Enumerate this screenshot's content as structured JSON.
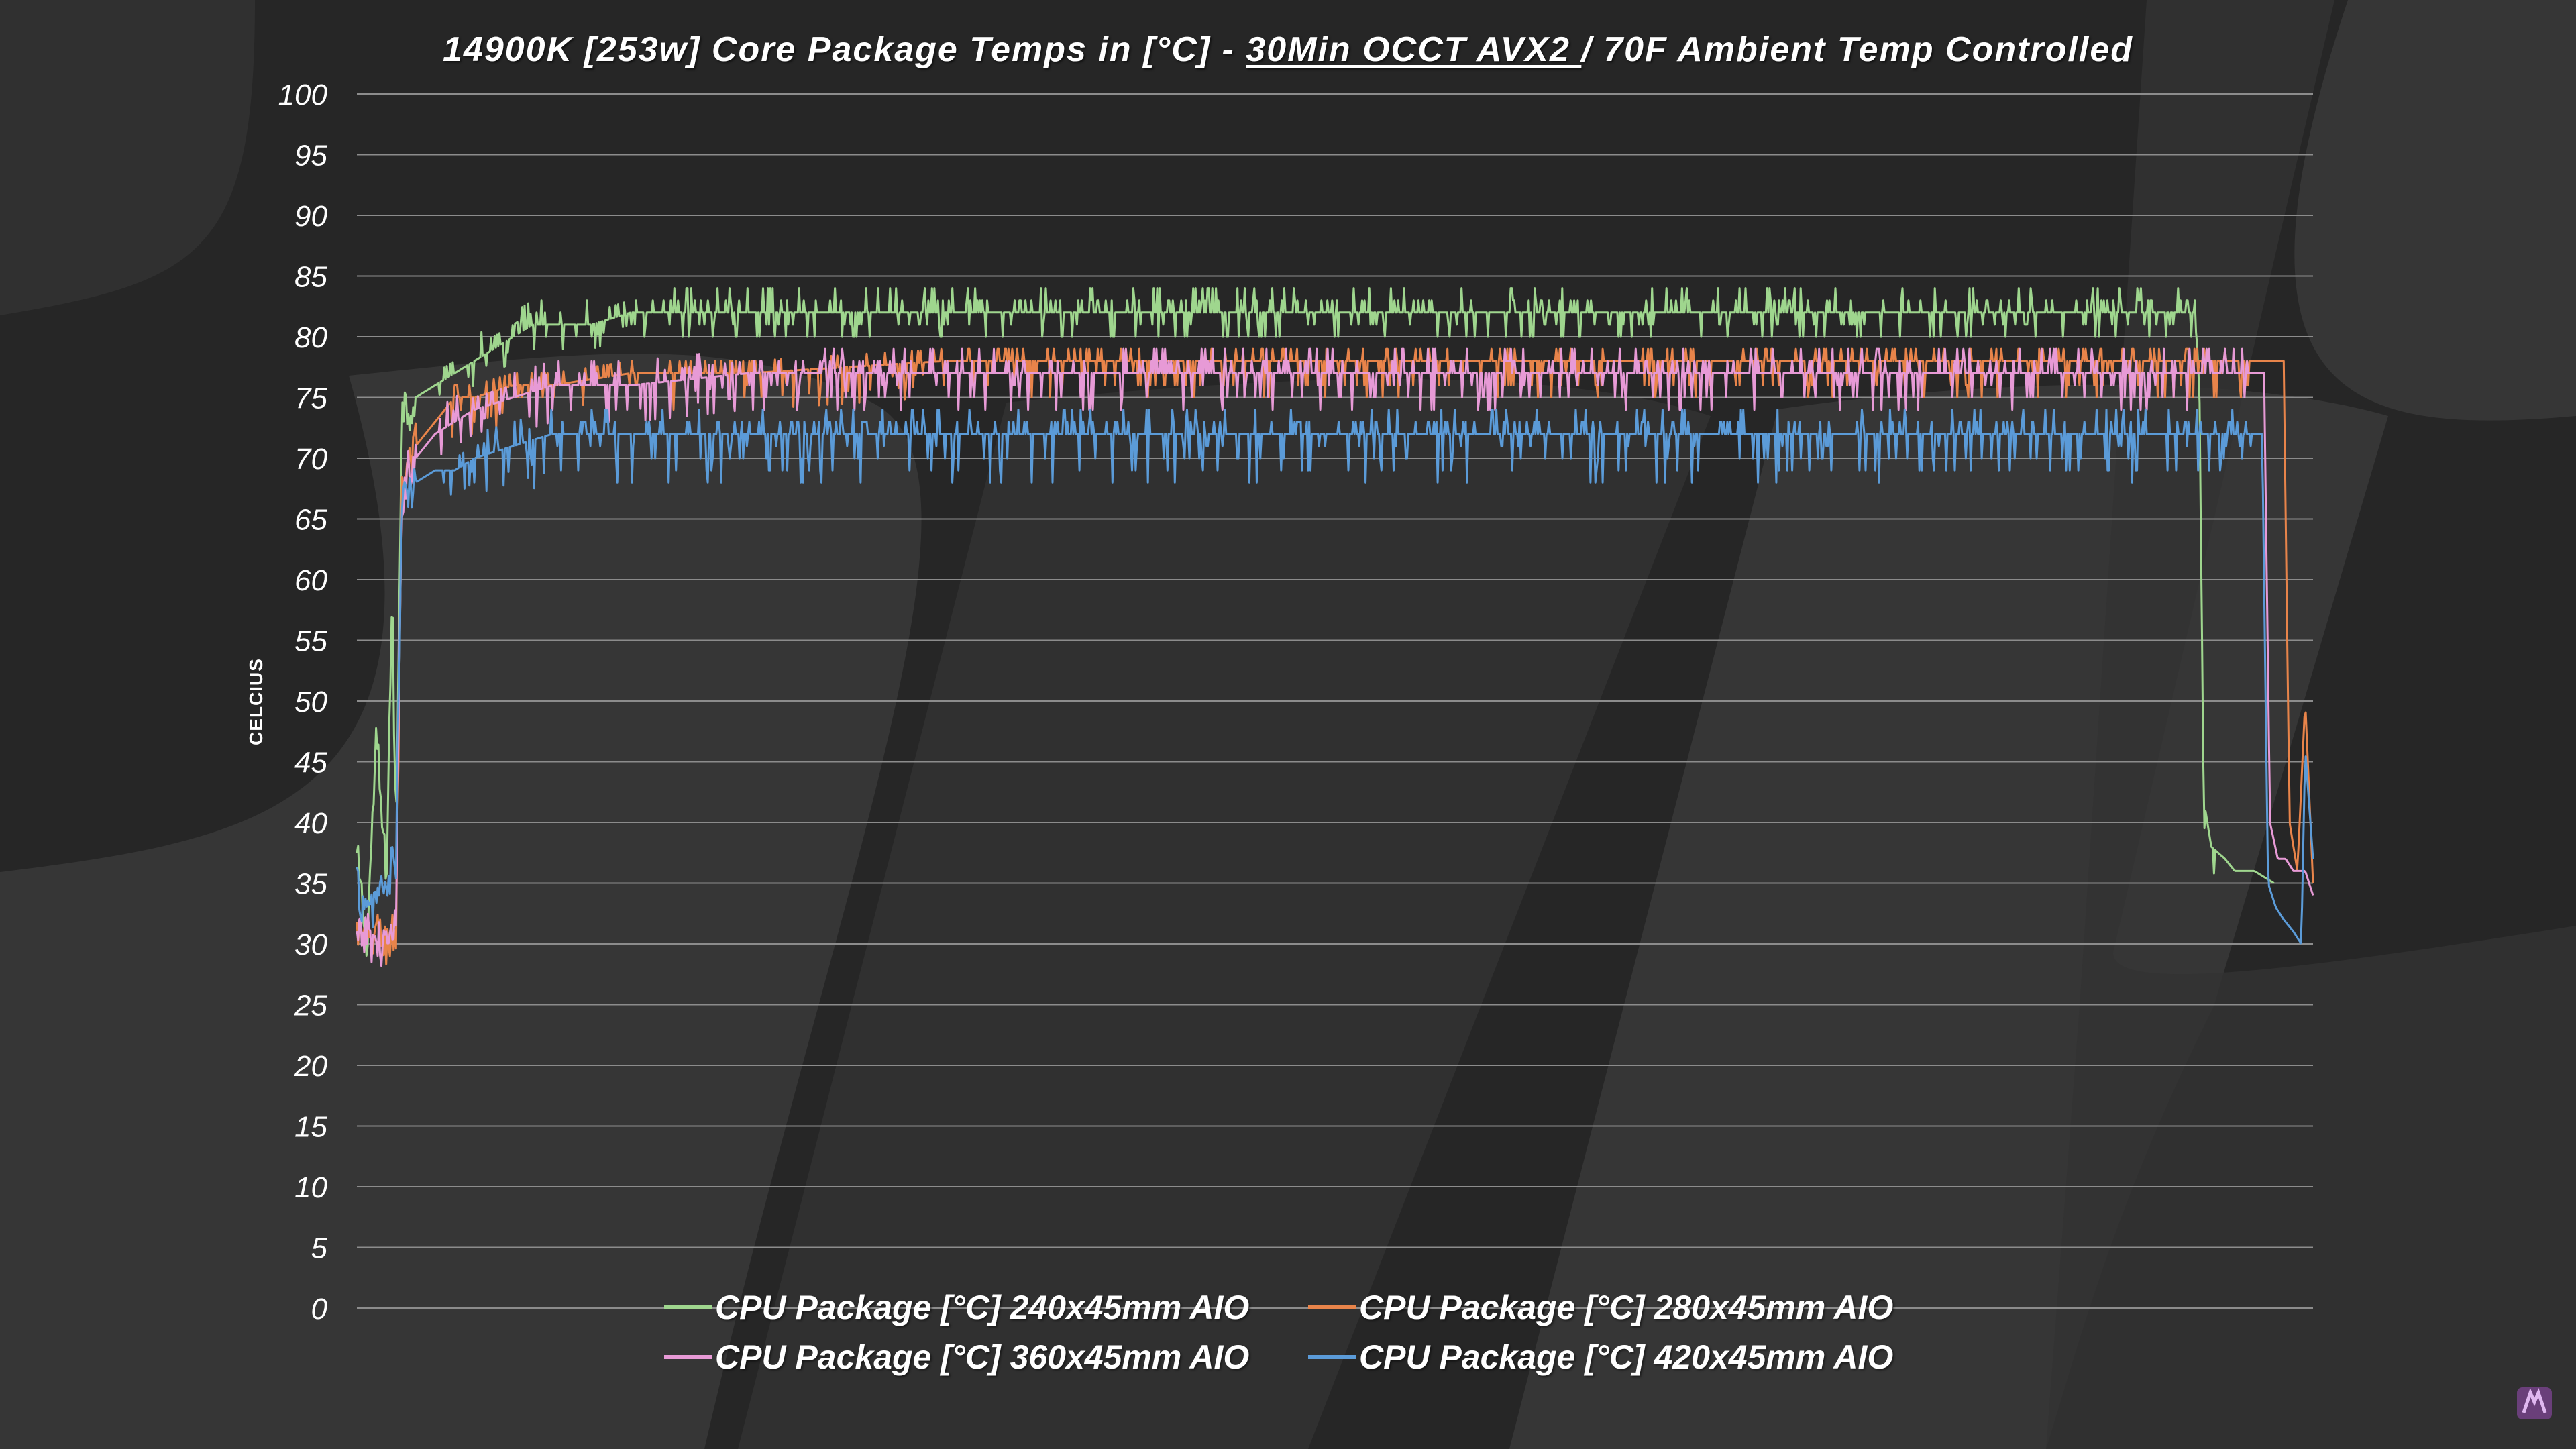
{
  "chart_data": {
    "type": "line",
    "title_parts": {
      "before": "14900K [253w]  Core Package Temps in [°C] - ",
      "underlined": "30Min OCCT AVX2 ",
      "after": "/ 70F Ambient Temp Controlled"
    },
    "ylabel": "CELCIUS",
    "xlabel": "",
    "ylim": [
      0,
      100
    ],
    "yticks": [
      0,
      5,
      10,
      15,
      20,
      25,
      30,
      35,
      40,
      45,
      50,
      55,
      60,
      65,
      70,
      75,
      80,
      85,
      90,
      95,
      100
    ],
    "grid": true,
    "legend_position": "bottom",
    "x_unit": "sample index (0-100 normalized run progress)",
    "series": [
      {
        "name": "CPU Package [°C] 240x45mm AIO",
        "color": "#9fd68e",
        "x": [
          0,
          0.5,
          1,
          1.5,
          1.8,
          2,
          2.3,
          2.6,
          3,
          4,
          5,
          6,
          7,
          8,
          9,
          10,
          12,
          14,
          20,
          30,
          40,
          50,
          60,
          70,
          80,
          90,
          94,
          94.2,
          94.4,
          94.8,
          95.5,
          96,
          97,
          98
        ],
        "values": [
          37,
          30,
          47,
          35,
          59,
          38,
          75,
          74,
          75,
          76,
          77,
          78,
          79,
          80,
          81,
          81,
          81,
          82,
          82,
          82,
          82,
          82,
          82,
          82,
          82,
          82,
          82,
          75,
          42,
          38,
          37,
          36,
          36,
          35
        ],
        "noise_hi": 2,
        "noise_lo": 1
      },
      {
        "name": "CPU Package [°C] 280x45mm AIO",
        "color": "#e8844a",
        "x": [
          0,
          0.5,
          1,
          1.5,
          2,
          2.3,
          2.6,
          3,
          4,
          5,
          6,
          8,
          10,
          14,
          20,
          30,
          40,
          50,
          60,
          70,
          80,
          90,
          95,
          98,
          98.5,
          98.8,
          99.2,
          99.6,
          100
        ],
        "values": [
          31,
          30,
          31,
          30,
          31,
          68,
          69,
          71,
          73,
          75,
          75,
          76,
          76,
          77,
          77,
          78,
          78,
          78,
          78,
          78,
          78,
          78,
          78,
          78,
          78,
          40,
          36,
          50,
          35
        ],
        "noise_hi": 1,
        "noise_lo": 2
      },
      {
        "name": "CPU Package [°C] 360x45mm AIO",
        "color": "#e79ad6",
        "x": [
          0,
          0.5,
          1,
          1.5,
          2,
          2.3,
          2.6,
          3,
          4,
          5,
          6,
          8,
          10,
          14,
          20,
          30,
          40,
          50,
          60,
          70,
          80,
          90,
          95,
          97.5,
          97.8,
          98.2,
          98.6,
          99,
          99.6,
          100
        ],
        "values": [
          30,
          31,
          30,
          30,
          31,
          67,
          69,
          70,
          72,
          73,
          74,
          75,
          76,
          76,
          77,
          77,
          77,
          77,
          77,
          77,
          77,
          77,
          77,
          77,
          40,
          37,
          37,
          36,
          36,
          34
        ],
        "noise_hi": 2,
        "noise_lo": 2
      },
      {
        "name": "CPU Package [°C] 420x45mm AIO",
        "color": "#5b9bd8",
        "x": [
          0,
          0.5,
          1,
          1.5,
          2,
          2.3,
          2.6,
          3,
          4,
          5,
          6,
          8,
          10,
          14,
          20,
          30,
          40,
          50,
          60,
          70,
          80,
          90,
          95,
          97.4,
          97.7,
          98.1,
          98.5,
          99,
          99.4,
          99.6,
          100
        ],
        "values": [
          35,
          32,
          34,
          35,
          37,
          66,
          67,
          68,
          69,
          69,
          70,
          71,
          72,
          72,
          72,
          72,
          72,
          72,
          72,
          72,
          72,
          72,
          72,
          72,
          35,
          33,
          32,
          31,
          30,
          46,
          37
        ],
        "noise_hi": 2,
        "noise_lo": 3
      }
    ]
  }
}
